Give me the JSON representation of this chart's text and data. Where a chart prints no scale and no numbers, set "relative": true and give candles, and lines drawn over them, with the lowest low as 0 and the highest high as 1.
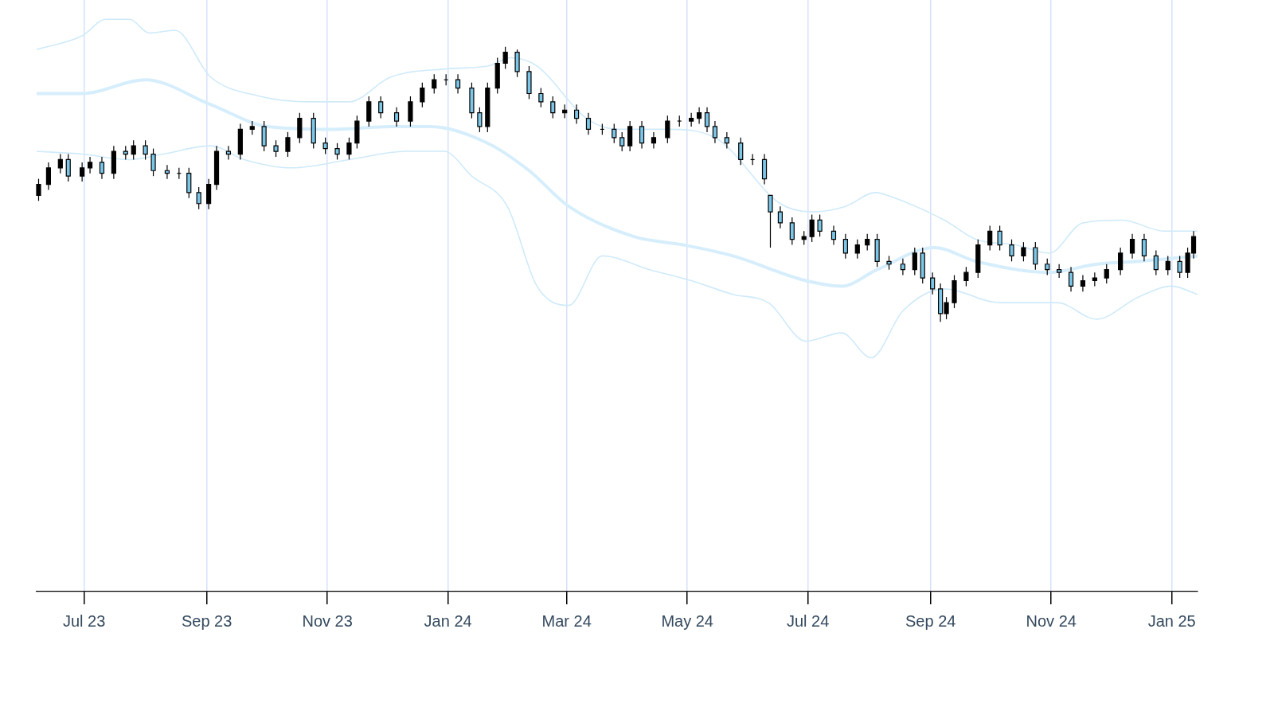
{
  "chart_data": {
    "type": "candlestick",
    "relative": true,
    "grid": "x",
    "x": [
      "2023-06-08",
      "2023-06-13",
      "2023-06-19",
      "2023-06-23",
      "2023-06-30",
      "2023-07-04",
      "2023-07-10",
      "2023-07-16",
      "2023-07-22",
      "2023-07-26",
      "2023-08-01",
      "2023-08-05",
      "2023-08-12",
      "2023-08-18",
      "2023-08-23",
      "2023-08-28",
      "2023-09-02",
      "2023-09-06",
      "2023-09-12",
      "2023-09-18",
      "2023-09-24",
      "2023-09-30",
      "2023-10-06",
      "2023-10-12",
      "2023-10-18",
      "2023-10-25",
      "2023-10-31",
      "2023-11-06",
      "2023-11-12",
      "2023-11-16",
      "2023-11-22",
      "2023-11-28",
      "2023-12-06",
      "2023-12-13",
      "2023-12-19",
      "2023-12-25",
      "2023-12-31",
      "2024-01-06",
      "2024-01-13",
      "2024-01-17",
      "2024-01-21",
      "2024-01-26",
      "2024-01-30",
      "2024-02-05",
      "2024-02-11",
      "2024-02-17",
      "2024-02-23",
      "2024-02-29",
      "2024-03-06",
      "2024-03-12",
      "2024-03-19",
      "2024-03-25",
      "2024-03-29",
      "2024-04-02",
      "2024-04-08",
      "2024-04-14",
      "2024-04-21",
      "2024-04-27",
      "2024-05-03",
      "2024-05-07",
      "2024-05-11",
      "2024-05-15",
      "2024-05-21",
      "2024-05-28",
      "2024-06-03",
      "2024-06-09",
      "2024-06-12",
      "2024-06-17",
      "2024-06-23",
      "2024-06-29",
      "2024-07-03",
      "2024-07-07",
      "2024-07-14",
      "2024-07-20",
      "2024-07-26",
      "2024-07-31",
      "2024-08-05",
      "2024-08-11",
      "2024-08-18",
      "2024-08-24",
      "2024-08-28",
      "2024-09-02",
      "2024-09-06",
      "2024-09-09",
      "2024-09-13",
      "2024-09-19",
      "2024-09-25",
      "2024-10-01",
      "2024-10-06",
      "2024-10-12",
      "2024-10-18",
      "2024-10-24",
      "2024-10-30",
      "2024-11-05",
      "2024-11-11",
      "2024-11-17",
      "2024-11-23",
      "2024-11-29",
      "2024-12-06",
      "2024-12-12",
      "2024-12-18",
      "2024-12-24",
      "2024-12-30",
      "2025-01-05",
      "2025-01-09",
      "2025-01-12"
    ],
    "ohlc": [
      [
        0.46,
        0.52,
        0.44,
        0.5
      ],
      [
        0.5,
        0.58,
        0.48,
        0.56
      ],
      [
        0.56,
        0.61,
        0.54,
        0.59
      ],
      [
        0.59,
        0.61,
        0.51,
        0.53
      ],
      [
        0.53,
        0.58,
        0.51,
        0.56
      ],
      [
        0.56,
        0.6,
        0.54,
        0.58
      ],
      [
        0.58,
        0.6,
        0.52,
        0.54
      ],
      [
        0.54,
        0.64,
        0.52,
        0.62
      ],
      [
        0.62,
        0.64,
        0.59,
        0.61
      ],
      [
        0.61,
        0.66,
        0.59,
        0.64
      ],
      [
        0.64,
        0.66,
        0.59,
        0.61
      ],
      [
        0.61,
        0.63,
        0.53,
        0.55
      ],
      [
        0.55,
        0.57,
        0.52,
        0.54
      ],
      [
        0.54,
        0.56,
        0.52,
        0.54
      ],
      [
        0.54,
        0.56,
        0.45,
        0.47
      ],
      [
        0.47,
        0.49,
        0.41,
        0.43
      ],
      [
        0.43,
        0.52,
        0.41,
        0.5
      ],
      [
        0.5,
        0.64,
        0.48,
        0.62
      ],
      [
        0.62,
        0.64,
        0.59,
        0.61
      ],
      [
        0.61,
        0.72,
        0.59,
        0.7
      ],
      [
        0.7,
        0.73,
        0.68,
        0.71
      ],
      [
        0.71,
        0.73,
        0.62,
        0.64
      ],
      [
        0.64,
        0.66,
        0.6,
        0.62
      ],
      [
        0.62,
        0.69,
        0.6,
        0.67
      ],
      [
        0.67,
        0.76,
        0.65,
        0.74
      ],
      [
        0.74,
        0.76,
        0.63,
        0.65
      ],
      [
        0.65,
        0.67,
        0.61,
        0.63
      ],
      [
        0.63,
        0.65,
        0.59,
        0.61
      ],
      [
        0.61,
        0.67,
        0.59,
        0.65
      ],
      [
        0.65,
        0.75,
        0.63,
        0.73
      ],
      [
        0.73,
        0.82,
        0.71,
        0.8
      ],
      [
        0.8,
        0.82,
        0.74,
        0.76
      ],
      [
        0.76,
        0.78,
        0.71,
        0.73
      ],
      [
        0.73,
        0.82,
        0.71,
        0.8
      ],
      [
        0.8,
        0.87,
        0.78,
        0.85
      ],
      [
        0.85,
        0.9,
        0.83,
        0.88
      ],
      [
        0.88,
        0.9,
        0.86,
        0.88
      ],
      [
        0.88,
        0.9,
        0.83,
        0.85
      ],
      [
        0.85,
        0.87,
        0.74,
        0.76
      ],
      [
        0.76,
        0.78,
        0.69,
        0.71
      ],
      [
        0.71,
        0.87,
        0.69,
        0.85
      ],
      [
        0.85,
        0.96,
        0.83,
        0.94
      ],
      [
        0.94,
        1.0,
        0.92,
        0.98
      ],
      [
        0.98,
        0.99,
        0.89,
        0.91
      ],
      [
        0.91,
        0.93,
        0.81,
        0.83
      ],
      [
        0.83,
        0.85,
        0.78,
        0.8
      ],
      [
        0.8,
        0.82,
        0.74,
        0.76
      ],
      [
        0.76,
        0.79,
        0.74,
        0.77
      ],
      [
        0.77,
        0.79,
        0.72,
        0.74
      ],
      [
        0.74,
        0.76,
        0.68,
        0.7
      ],
      [
        0.7,
        0.72,
        0.68,
        0.7
      ],
      [
        0.7,
        0.72,
        0.65,
        0.67
      ],
      [
        0.67,
        0.69,
        0.62,
        0.64
      ],
      [
        0.64,
        0.73,
        0.62,
        0.71
      ],
      [
        0.71,
        0.73,
        0.63,
        0.65
      ],
      [
        0.65,
        0.69,
        0.63,
        0.67
      ],
      [
        0.67,
        0.75,
        0.65,
        0.73
      ],
      [
        0.73,
        0.75,
        0.71,
        0.73
      ],
      [
        0.73,
        0.76,
        0.71,
        0.74
      ],
      [
        0.74,
        0.78,
        0.72,
        0.76
      ],
      [
        0.76,
        0.78,
        0.69,
        0.71
      ],
      [
        0.71,
        0.73,
        0.65,
        0.67
      ],
      [
        0.67,
        0.69,
        0.63,
        0.65
      ],
      [
        0.65,
        0.67,
        0.57,
        0.59
      ],
      [
        0.59,
        0.61,
        0.57,
        0.59
      ],
      [
        0.59,
        0.61,
        0.5,
        0.52
      ],
      [
        0.46,
        0.46,
        0.27,
        0.4
      ],
      [
        0.4,
        0.42,
        0.34,
        0.36
      ],
      [
        0.36,
        0.38,
        0.28,
        0.3
      ],
      [
        0.3,
        0.33,
        0.28,
        0.31
      ],
      [
        0.31,
        0.39,
        0.29,
        0.37
      ],
      [
        0.37,
        0.39,
        0.31,
        0.33
      ],
      [
        0.33,
        0.35,
        0.28,
        0.3
      ],
      [
        0.3,
        0.32,
        0.23,
        0.25
      ],
      [
        0.25,
        0.3,
        0.23,
        0.28
      ],
      [
        0.28,
        0.32,
        0.26,
        0.3
      ],
      [
        0.3,
        0.32,
        0.2,
        0.22
      ],
      [
        0.22,
        0.24,
        0.19,
        0.21
      ],
      [
        0.21,
        0.23,
        0.17,
        0.19
      ],
      [
        0.19,
        0.27,
        0.17,
        0.25
      ],
      [
        0.25,
        0.27,
        0.14,
        0.16
      ],
      [
        0.16,
        0.18,
        0.1,
        0.12
      ],
      [
        0.12,
        0.14,
        0.0,
        0.03
      ],
      [
        0.03,
        0.09,
        0.01,
        0.07
      ],
      [
        0.07,
        0.17,
        0.05,
        0.15
      ],
      [
        0.15,
        0.2,
        0.13,
        0.18
      ],
      [
        0.18,
        0.3,
        0.16,
        0.28
      ],
      [
        0.28,
        0.35,
        0.26,
        0.33
      ],
      [
        0.33,
        0.35,
        0.26,
        0.28
      ],
      [
        0.28,
        0.3,
        0.22,
        0.24
      ],
      [
        0.24,
        0.29,
        0.22,
        0.27
      ],
      [
        0.27,
        0.29,
        0.19,
        0.21
      ],
      [
        0.21,
        0.23,
        0.17,
        0.19
      ],
      [
        0.19,
        0.21,
        0.16,
        0.18
      ],
      [
        0.18,
        0.2,
        0.11,
        0.13
      ],
      [
        0.13,
        0.17,
        0.11,
        0.15
      ],
      [
        0.15,
        0.18,
        0.13,
        0.16
      ],
      [
        0.16,
        0.21,
        0.14,
        0.19
      ],
      [
        0.19,
        0.27,
        0.17,
        0.25
      ],
      [
        0.25,
        0.32,
        0.23,
        0.3
      ],
      [
        0.3,
        0.32,
        0.22,
        0.24
      ],
      [
        0.24,
        0.26,
        0.17,
        0.19
      ],
      [
        0.19,
        0.24,
        0.17,
        0.22
      ],
      [
        0.22,
        0.24,
        0.16,
        0.18
      ],
      [
        0.18,
        0.27,
        0.16,
        0.25
      ],
      [
        0.25,
        0.33,
        0.23,
        0.31
      ]
    ],
    "series": [
      {
        "type": "line",
        "color": "#cfeafa",
        "x": [
          "2023-06-07",
          "2023-06-30",
          "2023-07-12",
          "2023-07-24",
          "2023-08-03",
          "2023-08-16",
          "2023-09-03",
          "2023-09-28",
          "2023-10-23",
          "2023-11-12",
          "2023-12-03",
          "2024-01-01",
          "2024-01-21",
          "2024-02-02",
          "2024-02-15",
          "2024-03-11",
          "2024-03-27",
          "2024-04-21",
          "2024-05-15",
          "2024-06-17",
          "2024-07-03",
          "2024-07-20",
          "2024-08-04",
          "2024-08-14",
          "2024-09-08",
          "2024-09-24",
          "2024-10-14",
          "2024-10-31",
          "2024-11-17",
          "2024-12-07",
          "2024-12-28",
          "2025-01-14"
        ],
        "values": [
          0.99,
          1.04,
          1.1,
          1.1,
          1.05,
          1.06,
          0.89,
          0.82,
          0.8,
          0.8,
          0.89,
          0.92,
          0.93,
          0.96,
          0.93,
          0.74,
          0.7,
          0.7,
          0.67,
          0.43,
          0.4,
          0.42,
          0.47,
          0.45,
          0.37,
          0.3,
          0.28,
          0.25,
          0.36,
          0.37,
          0.33,
          0.33
        ]
      },
      {
        "type": "line",
        "color": "#d6eefc",
        "x": [
          "2023-06-07",
          "2023-06-30",
          "2023-08-01",
          "2023-09-03",
          "2023-10-02",
          "2023-11-04",
          "2023-12-03",
          "2023-12-23",
          "2024-01-21",
          "2024-02-11",
          "2024-03-02",
          "2024-04-04",
          "2024-04-29",
          "2024-05-24",
          "2024-06-30",
          "2024-07-18",
          "2024-08-05",
          "2024-09-03",
          "2024-09-24",
          "2024-10-31",
          "2024-11-24",
          "2024-12-15",
          "2025-01-14"
        ],
        "values": [
          0.83,
          0.83,
          0.88,
          0.79,
          0.71,
          0.7,
          0.71,
          0.71,
          0.65,
          0.55,
          0.42,
          0.31,
          0.28,
          0.24,
          0.15,
          0.13,
          0.19,
          0.27,
          0.22,
          0.18,
          0.21,
          0.22,
          0.24
        ]
      },
      {
        "type": "line",
        "color": "#cfeafa",
        "x": [
          "2023-06-07",
          "2023-06-30",
          "2023-07-24",
          "2023-08-10",
          "2023-09-03",
          "2023-09-20",
          "2023-10-14",
          "2023-11-12",
          "2023-12-11",
          "2023-12-30",
          "2024-01-13",
          "2024-01-31",
          "2024-02-15",
          "2024-03-02",
          "2024-03-19",
          "2024-04-12",
          "2024-05-03",
          "2024-05-24",
          "2024-06-11",
          "2024-06-30",
          "2024-07-18",
          "2024-08-02",
          "2024-08-18",
          "2024-09-08",
          "2024-10-06",
          "2024-11-04",
          "2024-11-24",
          "2024-12-15",
          "2025-01-01",
          "2025-01-14"
        ],
        "values": [
          0.62,
          0.61,
          0.59,
          0.61,
          0.64,
          0.59,
          0.56,
          0.59,
          0.62,
          0.62,
          0.53,
          0.42,
          0.13,
          0.06,
          0.24,
          0.19,
          0.15,
          0.1,
          0.07,
          -0.07,
          -0.04,
          -0.13,
          0.04,
          0.12,
          0.07,
          0.07,
          0.01,
          0.09,
          0.13,
          0.1
        ]
      }
    ],
    "xlim": [
      "2023-06-07",
      "2025-01-14"
    ],
    "xticks": [
      {
        "value": "2023-07-01",
        "label": "Jul 23"
      },
      {
        "value": "2023-09-01",
        "label": "Sep 23"
      },
      {
        "value": "2023-11-01",
        "label": "Nov 23"
      },
      {
        "value": "2024-01-01",
        "label": "Jan 24"
      },
      {
        "value": "2024-03-01",
        "label": "Mar 24"
      },
      {
        "value": "2024-05-01",
        "label": "May 24"
      },
      {
        "value": "2024-07-01",
        "label": "Jul 24"
      },
      {
        "value": "2024-09-01",
        "label": "Sep 24"
      },
      {
        "value": "2024-11-01",
        "label": "Nov 24"
      },
      {
        "value": "2025-01-01",
        "label": "Jan 25"
      }
    ]
  }
}
